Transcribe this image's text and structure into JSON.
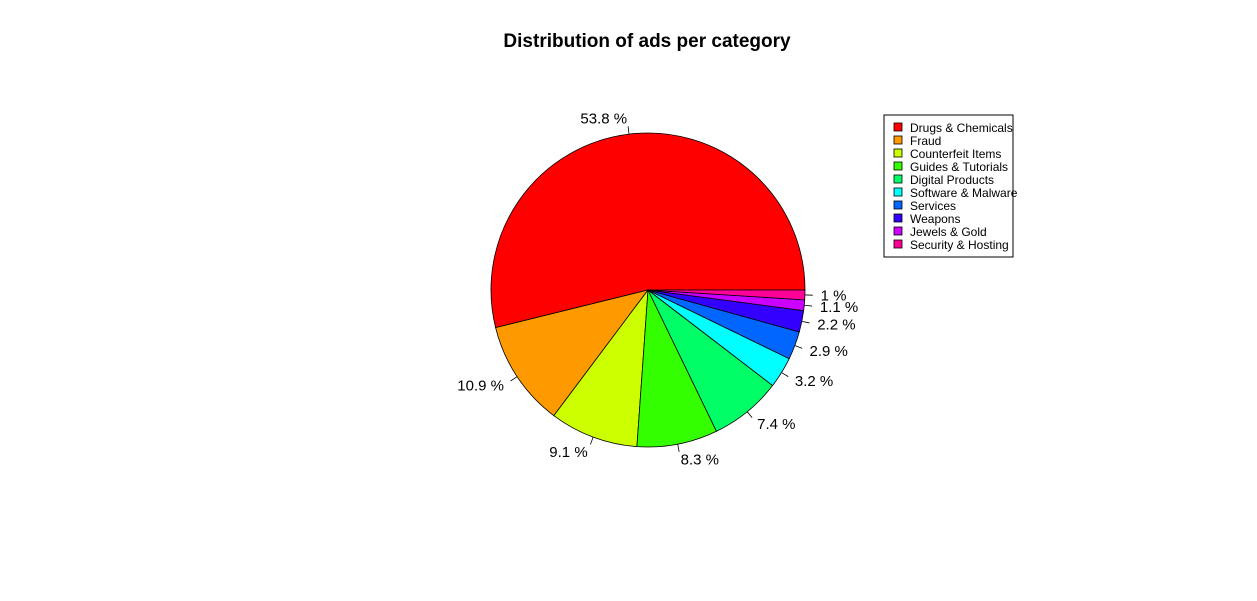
{
  "chart_data": {
    "type": "pie",
    "title": "Distribution of ads per category",
    "labels": [
      "Drugs & Chemicals",
      "Fraud",
      "Counterfeit Items",
      "Guides & Tutorials",
      "Digital Products",
      "Software & Malware",
      "Services",
      "Weapons",
      "Jewels & Gold",
      "Security & Hosting"
    ],
    "values": [
      53.8,
      10.9,
      9.1,
      8.3,
      7.4,
      3.2,
      2.9,
      2.2,
      1.1,
      1.0
    ],
    "value_labels": [
      "53.8 %",
      "10.9 %",
      "9.1 %",
      "8.3 %",
      "7.4 %",
      "3.2 %",
      "2.9 %",
      "2.2 %",
      "1.1 %",
      "1 %"
    ],
    "colors": [
      "#FF0000",
      "#FF9900",
      "#CCFF00",
      "#33FF00",
      "#00FF66",
      "#00FFFF",
      "#0066FF",
      "#3300FF",
      "#CC00FF",
      "#FF0099"
    ],
    "legend_position": "top-right"
  }
}
